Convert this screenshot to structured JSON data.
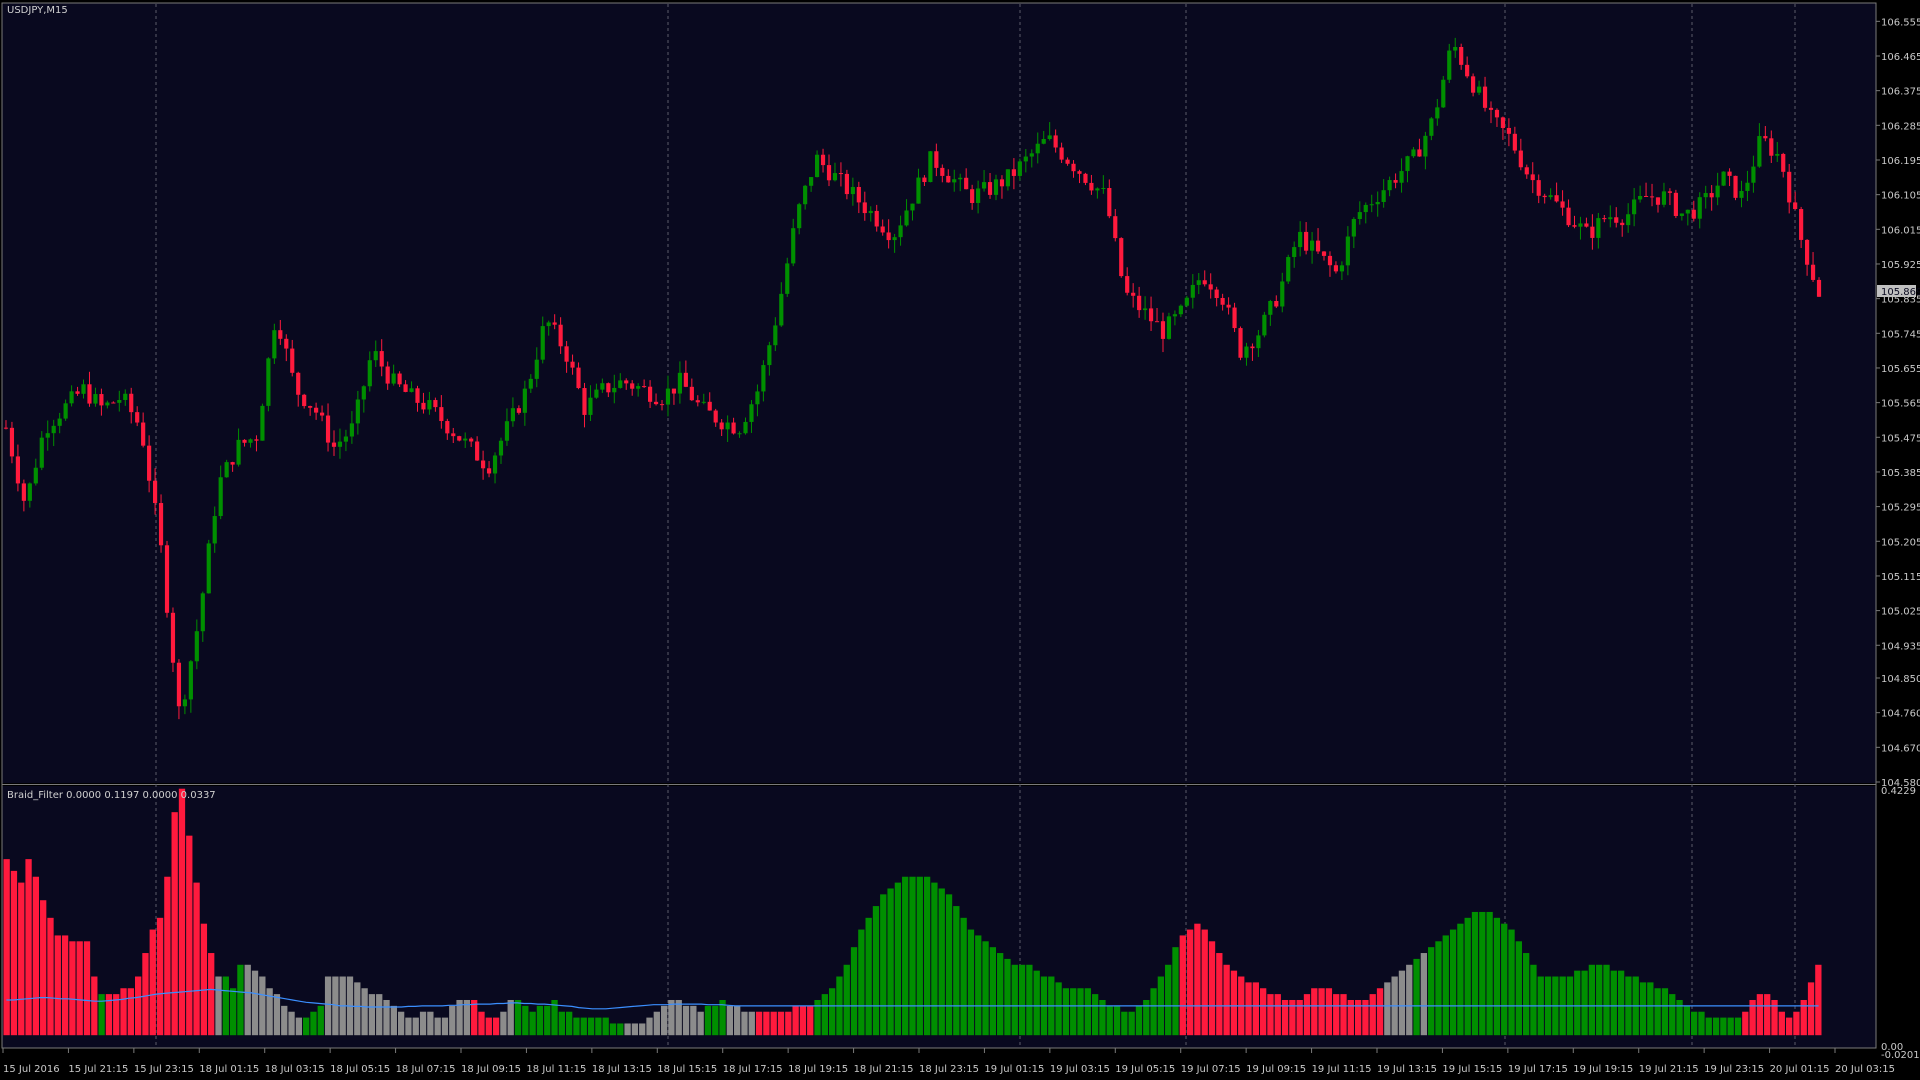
{
  "window": {
    "main_label": "USDJPY,M15",
    "indicator_label": "Braid_Filter 0.0000 0.1197 0.0000 0.0337",
    "price_badge": "105.869"
  },
  "colors": {
    "background": "#09091f",
    "bull": "#008f00",
    "bear": "#ff1a3d",
    "neutral": "#8c8c8c",
    "signal": "#3b8fff",
    "grid": "#5a5a6a"
  },
  "price_axis": [
    "106.555",
    "106.465",
    "106.375",
    "106.285",
    "106.195",
    "106.105",
    "106.015",
    "105.925",
    "105.835",
    "105.745",
    "105.655",
    "105.565",
    "105.475",
    "105.385",
    "105.295",
    "105.205",
    "105.115",
    "105.025",
    "104.935",
    "104.850",
    "104.760",
    "104.670",
    "104.580"
  ],
  "indicator_axis": {
    "top": "0.4229",
    "zero": "0.00",
    "bottom": "-0.0201"
  },
  "time_axis": [
    "15 Jul 2016",
    "15 Jul 21:15",
    "15 Jul 23:15",
    "18 Jul 01:15",
    "18 Jul 03:15",
    "18 Jul 05:15",
    "18 Jul 07:15",
    "18 Jul 09:15",
    "18 Jul 11:15",
    "18 Jul 13:15",
    "18 Jul 15:15",
    "18 Jul 17:15",
    "18 Jul 19:15",
    "18 Jul 21:15",
    "18 Jul 23:15",
    "19 Jul 01:15",
    "19 Jul 03:15",
    "19 Jul 05:15",
    "19 Jul 07:15",
    "19 Jul 09:15",
    "19 Jul 11:15",
    "19 Jul 13:15",
    "19 Jul 15:15",
    "19 Jul 17:15",
    "19 Jul 19:15",
    "19 Jul 21:15",
    "19 Jul 23:15",
    "20 Jul 01:15",
    "20 Jul 03:15"
  ],
  "chart_data": [
    {
      "type": "candlestick",
      "symbol": "USDJPY",
      "timeframe": "M15",
      "ylim": [
        104.58,
        106.6
      ],
      "close_path": [
        105.5,
        105.3,
        105.5,
        105.55,
        105.6,
        105.55,
        105.58,
        105.5,
        105.2,
        104.75,
        105.0,
        105.35,
        105.45,
        105.48,
        105.8,
        105.6,
        105.55,
        105.45,
        105.5,
        105.7,
        105.62,
        105.58,
        105.55,
        105.5,
        105.45,
        105.4,
        105.5,
        105.6,
        105.78,
        105.7,
        105.55,
        105.6,
        105.62,
        105.6,
        105.58,
        105.62,
        105.55,
        105.52,
        105.5,
        105.6,
        105.8,
        106.05,
        106.2,
        106.15,
        106.1,
        106.05,
        106.0,
        106.1,
        106.2,
        106.15,
        106.1,
        106.12,
        106.15,
        106.2,
        106.25,
        106.2,
        106.15,
        106.1,
        105.85,
        105.8,
        105.75,
        105.8,
        105.9,
        105.85,
        105.7,
        105.75,
        105.85,
        106.0,
        105.95,
        105.9,
        106.05,
        106.1,
        106.15,
        106.2,
        106.3,
        106.5,
        106.4,
        106.3,
        106.25,
        106.15,
        106.1,
        106.05,
        106.0,
        106.05,
        106.05,
        106.1,
        106.1,
        106.05,
        106.08,
        106.15,
        106.1,
        106.25,
        106.2,
        106.0,
        105.85
      ]
    },
    {
      "type": "bar",
      "name": "Braid_Filter",
      "ylim": [
        -0.0201,
        0.4229
      ],
      "values": [
        0.3,
        0.28,
        0.26,
        0.3,
        0.27,
        0.23,
        0.2,
        0.17,
        0.17,
        0.16,
        0.16,
        0.16,
        0.1,
        0.07,
        0.07,
        0.07,
        0.08,
        0.08,
        0.1,
        0.14,
        0.18,
        0.2,
        0.27,
        0.38,
        0.42,
        0.34,
        0.26,
        0.19,
        0.14,
        0.1,
        0.1,
        0.08,
        0.12,
        0.12,
        0.11,
        0.1,
        0.08,
        0.07,
        0.05,
        0.04,
        0.03,
        0.03,
        0.04,
        0.05,
        0.1,
        0.1,
        0.1,
        0.1,
        0.09,
        0.08,
        0.07,
        0.07,
        0.06,
        0.05,
        0.04,
        0.03,
        0.03,
        0.04,
        0.04,
        0.03,
        0.03,
        0.05,
        0.06,
        0.06,
        0.06,
        0.04,
        0.03,
        0.03,
        0.04,
        0.06,
        0.06,
        0.05,
        0.04,
        0.05,
        0.05,
        0.06,
        0.04,
        0.04,
        0.03,
        0.03,
        0.03,
        0.03,
        0.03,
        0.02,
        0.02,
        0.02,
        0.02,
        0.02,
        0.03,
        0.04,
        0.05,
        0.06,
        0.06,
        0.05,
        0.05,
        0.04,
        0.05,
        0.05,
        0.06,
        0.05,
        0.05,
        0.04,
        0.04,
        0.04,
        0.04,
        0.04,
        0.04,
        0.04,
        0.05,
        0.05,
        0.05,
        0.06,
        0.07,
        0.08,
        0.1,
        0.12,
        0.15,
        0.18,
        0.2,
        0.22,
        0.24,
        0.25,
        0.26,
        0.27,
        0.27,
        0.27,
        0.27,
        0.26,
        0.25,
        0.24,
        0.22,
        0.2,
        0.18,
        0.17,
        0.16,
        0.15,
        0.14,
        0.13,
        0.12,
        0.12,
        0.12,
        0.11,
        0.1,
        0.1,
        0.09,
        0.08,
        0.08,
        0.08,
        0.08,
        0.07,
        0.06,
        0.05,
        0.05,
        0.04,
        0.04,
        0.05,
        0.06,
        0.08,
        0.1,
        0.12,
        0.15,
        0.17,
        0.18,
        0.19,
        0.18,
        0.16,
        0.14,
        0.12,
        0.11,
        0.1,
        0.09,
        0.09,
        0.08,
        0.07,
        0.07,
        0.06,
        0.06,
        0.06,
        0.07,
        0.08,
        0.08,
        0.08,
        0.07,
        0.07,
        0.06,
        0.06,
        0.06,
        0.07,
        0.08,
        0.09,
        0.1,
        0.11,
        0.12,
        0.13,
        0.14,
        0.15,
        0.16,
        0.17,
        0.18,
        0.19,
        0.2,
        0.21,
        0.21,
        0.21,
        0.2,
        0.19,
        0.18,
        0.16,
        0.14,
        0.12,
        0.1,
        0.1,
        0.1,
        0.1,
        0.1,
        0.11,
        0.11,
        0.12,
        0.12,
        0.12,
        0.11,
        0.11,
        0.1,
        0.1,
        0.09,
        0.09,
        0.08,
        0.08,
        0.07,
        0.06,
        0.05,
        0.04,
        0.04,
        0.03,
        0.03,
        0.03,
        0.03,
        0.03,
        0.04,
        0.06,
        0.07,
        0.07,
        0.06,
        0.04,
        0.03,
        0.04,
        0.06,
        0.09,
        0.12
      ],
      "colors": [
        "bear",
        "bear",
        "bear",
        "bear",
        "bear",
        "bear",
        "bear",
        "bear",
        "bear",
        "bear",
        "bear",
        "bear",
        "bear",
        "bull",
        "bear",
        "bear",
        "bear",
        "bear",
        "bear",
        "bear",
        "bear",
        "bear",
        "bear",
        "bear",
        "bear",
        "bear",
        "bear",
        "bear",
        "bear",
        "neutral",
        "bull",
        "bull",
        "bull",
        "neutral",
        "neutral",
        "neutral",
        "neutral",
        "neutral",
        "neutral",
        "neutral",
        "neutral",
        "bull",
        "bull",
        "bull",
        "neutral",
        "neutral",
        "neutral",
        "neutral",
        "neutral",
        "neutral",
        "neutral",
        "neutral",
        "neutral",
        "neutral",
        "neutral",
        "neutral",
        "neutral",
        "neutral",
        "neutral",
        "neutral",
        "neutral",
        "neutral",
        "neutral",
        "neutral",
        "bear",
        "bear",
        "bear",
        "bear",
        "neutral",
        "neutral",
        "bull",
        "bull",
        "bull",
        "bull",
        "bull",
        "bull",
        "bull",
        "bull",
        "bull",
        "bull",
        "bull",
        "bull",
        "bull",
        "bull",
        "bull",
        "neutral",
        "neutral",
        "neutral",
        "neutral",
        "neutral",
        "neutral",
        "neutral",
        "neutral",
        "neutral",
        "neutral",
        "neutral",
        "bull",
        "bull",
        "bull",
        "neutral",
        "neutral",
        "neutral",
        "neutral",
        "bear",
        "bear",
        "bear",
        "bear",
        "bear",
        "bear",
        "bear",
        "bear",
        "bull",
        "bull",
        "bull",
        "bull",
        "bull",
        "bull",
        "bull",
        "bull",
        "bull",
        "bull",
        "bull",
        "bull",
        "bull",
        "bull",
        "bull",
        "bull",
        "bull",
        "bull",
        "bull",
        "bull",
        "bull",
        "bull",
        "bull",
        "bull",
        "bull",
        "bull",
        "bull",
        "bull",
        "bull",
        "bull",
        "bull",
        "bull",
        "bull",
        "bull",
        "bull",
        "bull",
        "bull",
        "bull",
        "bull",
        "bull",
        "bull",
        "bull",
        "bull",
        "bull",
        "bull",
        "bull",
        "bull",
        "bull",
        "bull",
        "bull",
        "bear",
        "bear",
        "bear",
        "bear",
        "bear",
        "bear",
        "bear",
        "bear",
        "bear",
        "bear",
        "bear",
        "bear",
        "bear",
        "bear",
        "bear",
        "bear",
        "bear",
        "bear",
        "bear",
        "bear",
        "bear",
        "bear",
        "bear",
        "bear",
        "bear",
        "bear",
        "bear",
        "bear",
        "neutral",
        "neutral",
        "neutral",
        "neutral",
        "bull",
        "neutral",
        "bull",
        "bull",
        "bull",
        "bull",
        "bull",
        "bull",
        "bull",
        "bull",
        "bull",
        "bull",
        "bull",
        "bull",
        "bull",
        "bull",
        "bull",
        "bull",
        "bull",
        "bull",
        "bull",
        "bull",
        "bull",
        "bull",
        "bull",
        "bull",
        "bull",
        "bull",
        "bull",
        "bull",
        "bull",
        "bull",
        "bull",
        "bull",
        "bull",
        "bull",
        "bull",
        "bull",
        "bull",
        "bull",
        "bull",
        "bull",
        "bull",
        "bull",
        "bull",
        "bear",
        "bear",
        "bear",
        "bear",
        "bear",
        "bear",
        "bear",
        "bear",
        "bear",
        "bear",
        "bear",
        "bear",
        "bear",
        "bear",
        "bear",
        "bear",
        "bear",
        "bear",
        "bear",
        "bear",
        "bear",
        "neutral",
        "neutral",
        "neutral",
        "neutral",
        "neutral",
        "neutral",
        "neutral",
        "neutral",
        "neutral",
        "neutral",
        "neutral",
        "neutral",
        "bull",
        "bull",
        "bull",
        "bull",
        "bull",
        "neutral",
        "bear",
        "bear",
        "bear",
        "bear",
        "bear",
        "bear"
      ],
      "signal_line": [
        0.06,
        0.06,
        0.061,
        0.062,
        0.063,
        0.064,
        0.064,
        0.063,
        0.062,
        0.062,
        0.061,
        0.06,
        0.059,
        0.058,
        0.058,
        0.059,
        0.06,
        0.061,
        0.063,
        0.064,
        0.066,
        0.068,
        0.07,
        0.071,
        0.072,
        0.073,
        0.074,
        0.075,
        0.076,
        0.077,
        0.078,
        0.077,
        0.076,
        0.075,
        0.074,
        0.073,
        0.072,
        0.07,
        0.068,
        0.066,
        0.064,
        0.062,
        0.06,
        0.058,
        0.056,
        0.055,
        0.054,
        0.053,
        0.052,
        0.05,
        0.05,
        0.049,
        0.049,
        0.048,
        0.048,
        0.048,
        0.048,
        0.048,
        0.048,
        0.049,
        0.049,
        0.05,
        0.05,
        0.05,
        0.05,
        0.051,
        0.051,
        0.052,
        0.052,
        0.053,
        0.053,
        0.053,
        0.054,
        0.054,
        0.055,
        0.055,
        0.054,
        0.054,
        0.053,
        0.053,
        0.052,
        0.051,
        0.05,
        0.049,
        0.047,
        0.046,
        0.045,
        0.045,
        0.045,
        0.046,
        0.047,
        0.048,
        0.049,
        0.05,
        0.051,
        0.052,
        0.052,
        0.052,
        0.053,
        0.053,
        0.053,
        0.053,
        0.053,
        0.052,
        0.052,
        0.052,
        0.051,
        0.05,
        0.05,
        0.05,
        0.05,
        0.05,
        0.05,
        0.05,
        0.05,
        0.05,
        0.05,
        0.05,
        0.05,
        0.05,
        0.05,
        0.05,
        0.05,
        0.05,
        0.05,
        0.05,
        0.05,
        0.05,
        0.05,
        0.05,
        0.05,
        0.05,
        0.05,
        0.05,
        0.05,
        0.05,
        0.05,
        0.05,
        0.05,
        0.05,
        0.05,
        0.05,
        0.05,
        0.05,
        0.05,
        0.05,
        0.05,
        0.05,
        0.05,
        0.05,
        0.05,
        0.05,
        0.05,
        0.05,
        0.05,
        0.05,
        0.05,
        0.05,
        0.05,
        0.05,
        0.05,
        0.05,
        0.05,
        0.05,
        0.05,
        0.05,
        0.05,
        0.05,
        0.05,
        0.05,
        0.05,
        0.05,
        0.05,
        0.05,
        0.05,
        0.05,
        0.05,
        0.05,
        0.05,
        0.05,
        0.05,
        0.05,
        0.05,
        0.05,
        0.05,
        0.05,
        0.05,
        0.05,
        0.05,
        0.05,
        0.05,
        0.05,
        0.05,
        0.05,
        0.05,
        0.05,
        0.05,
        0.05,
        0.05,
        0.05,
        0.05,
        0.05,
        0.05,
        0.05,
        0.05,
        0.05,
        0.05,
        0.05,
        0.05,
        0.05,
        0.05,
        0.05,
        0.05,
        0.05,
        0.05,
        0.05,
        0.05,
        0.05,
        0.05,
        0.05,
        0.05,
        0.05,
        0.05,
        0.05,
        0.05,
        0.05,
        0.05,
        0.05,
        0.05,
        0.05,
        0.05,
        0.05,
        0.05,
        0.05,
        0.05,
        0.05,
        0.05,
        0.05,
        0.05,
        0.05,
        0.05,
        0.05,
        0.05,
        0.05,
        0.05,
        0.05,
        0.05,
        0.05,
        0.05,
        0.05,
        0.05,
        0.05,
        0.05,
        0.05,
        0.05,
        0.05,
        0.05,
        0.05,
        0.05,
        0.05,
        0.05,
        0.05,
        0.05,
        0.05,
        0.05,
        0.05,
        0.05
      ]
    }
  ]
}
